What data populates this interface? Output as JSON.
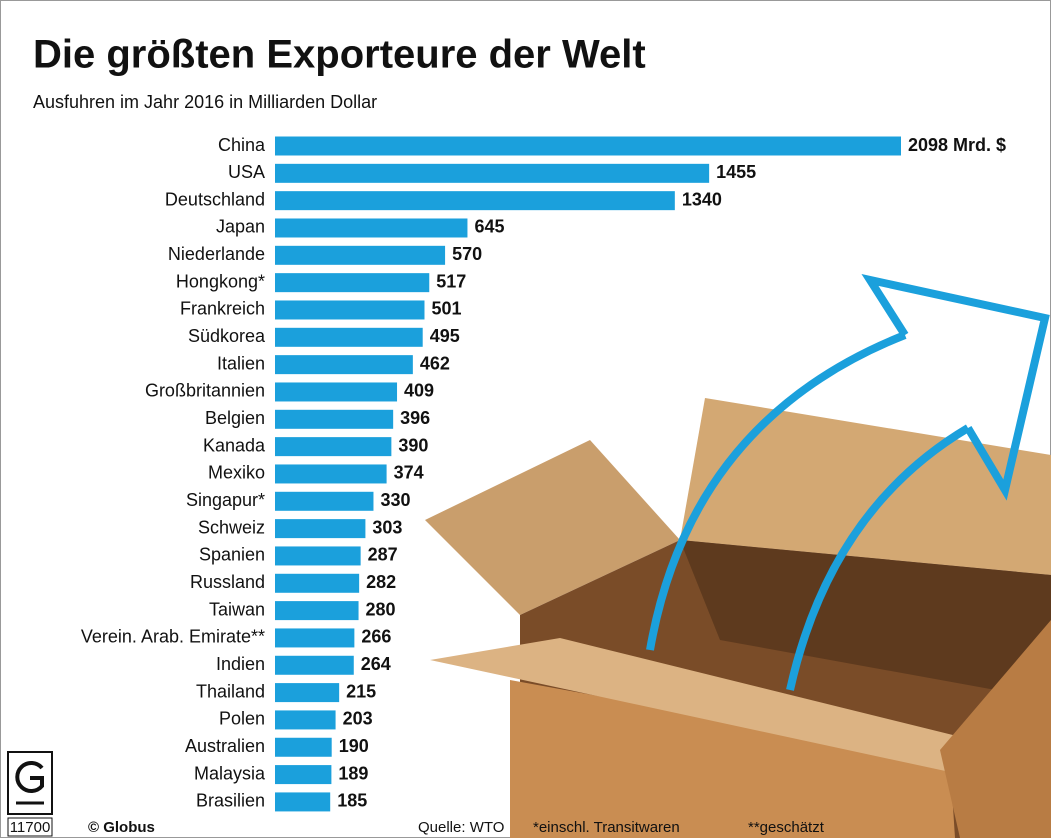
{
  "chart_data": {
    "type": "bar",
    "orientation": "horizontal",
    "title": "Die größten Exporteure der Welt",
    "subtitle": "Ausfuhren im Jahr 2016 in Milliarden Dollar",
    "categories": [
      "China",
      "USA",
      "Deutschland",
      "Japan",
      "Niederlande",
      "Hongkong*",
      "Frankreich",
      "Südkorea",
      "Italien",
      "Großbritannien",
      "Belgien",
      "Kanada",
      "Mexiko",
      "Singapur*",
      "Schweiz",
      "Spanien",
      "Russland",
      "Taiwan",
      "Verein. Arab. Emirate**",
      "Indien",
      "Thailand",
      "Polen",
      "Australien",
      "Malaysia",
      "Brasilien"
    ],
    "values": [
      2098,
      1455,
      1340,
      645,
      570,
      517,
      501,
      495,
      462,
      409,
      396,
      390,
      374,
      330,
      303,
      287,
      282,
      280,
      266,
      264,
      215,
      203,
      190,
      189,
      185
    ],
    "value_labels": [
      "2098 Mrd. $",
      "1455",
      "1340",
      "645",
      "570",
      "517",
      "501",
      "495",
      "462",
      "409",
      "396",
      "390",
      "374",
      "330",
      "303",
      "287",
      "282",
      "280",
      "266",
      "264",
      "215",
      "203",
      "190",
      "189",
      "185"
    ],
    "color": "#1ba0dc",
    "source": "Quelle: WTO",
    "notes": [
      "*einschl. Transitwaren",
      "**geschätzt"
    ],
    "credit": "© Globus",
    "graphic_number": "11700"
  }
}
